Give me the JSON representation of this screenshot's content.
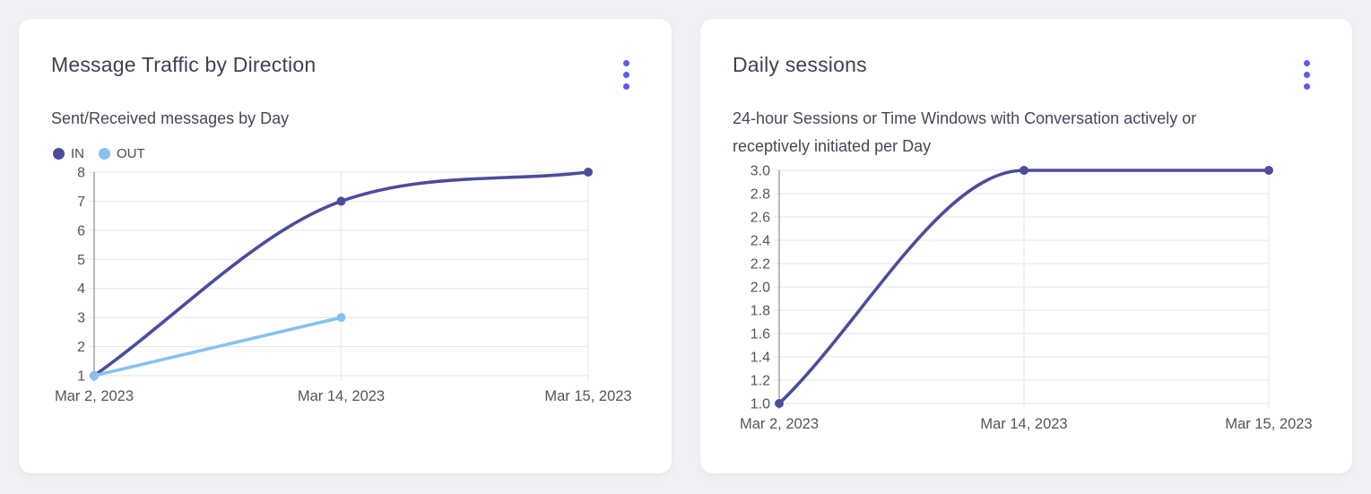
{
  "page": {
    "background": "#F0F1F5"
  },
  "colors": {
    "accent": "#5B5BF3",
    "series_in": "#4C4C9D",
    "series_out": "#85C2F0",
    "grid": "#E9E9ED",
    "axis": "#9B9BA3",
    "title_text": "#3F3F55",
    "subtitle_text": "#474758",
    "tick_text": "#54545E",
    "card_background": "#FFFFFF"
  },
  "cards": [
    {
      "title": "Message Traffic by Direction",
      "menu_icon": "kebab-menu",
      "subtitle_lines": [
        "Sent/Received messages by Day"
      ]
    },
    {
      "title": "Daily sessions",
      "menu_icon": "kebab-menu",
      "subtitle_lines": [
        "24-hour Sessions or Time Windows with Conversation actively or",
        "receptively initiated per Day"
      ]
    }
  ],
  "chart_data": [
    {
      "type": "line",
      "title": "Message Traffic by Direction",
      "subtitle": "Sent/Received messages by Day",
      "x": [
        "Mar 2, 2023",
        "Mar 14, 2023",
        "Mar 15, 2023"
      ],
      "series": [
        {
          "name": "IN",
          "color": "#4C4C9D",
          "values": [
            1,
            7,
            8
          ]
        },
        {
          "name": "OUT",
          "color": "#85C2F0",
          "values": [
            1,
            3,
            null
          ]
        }
      ],
      "ylim": [
        1,
        8
      ],
      "ytick_step": 1,
      "ytick_decimals": 0,
      "legend_position": "top-left",
      "grid": true,
      "curve": "monotone"
    },
    {
      "type": "line",
      "title": "Daily sessions",
      "subtitle": "24-hour Sessions or Time Windows with Conversation actively or receptively initiated per Day",
      "x": [
        "Mar 2, 2023",
        "Mar 14, 2023",
        "Mar 15, 2023"
      ],
      "series": [
        {
          "name": "Daily sessions",
          "color": "#4C4C9D",
          "values": [
            1.0,
            3.0,
            3.0
          ]
        }
      ],
      "ylim": [
        1.0,
        3.0
      ],
      "ytick_step": 0.2,
      "ytick_decimals": 1,
      "legend_position": "none",
      "grid": true,
      "curve": "monotone"
    }
  ]
}
